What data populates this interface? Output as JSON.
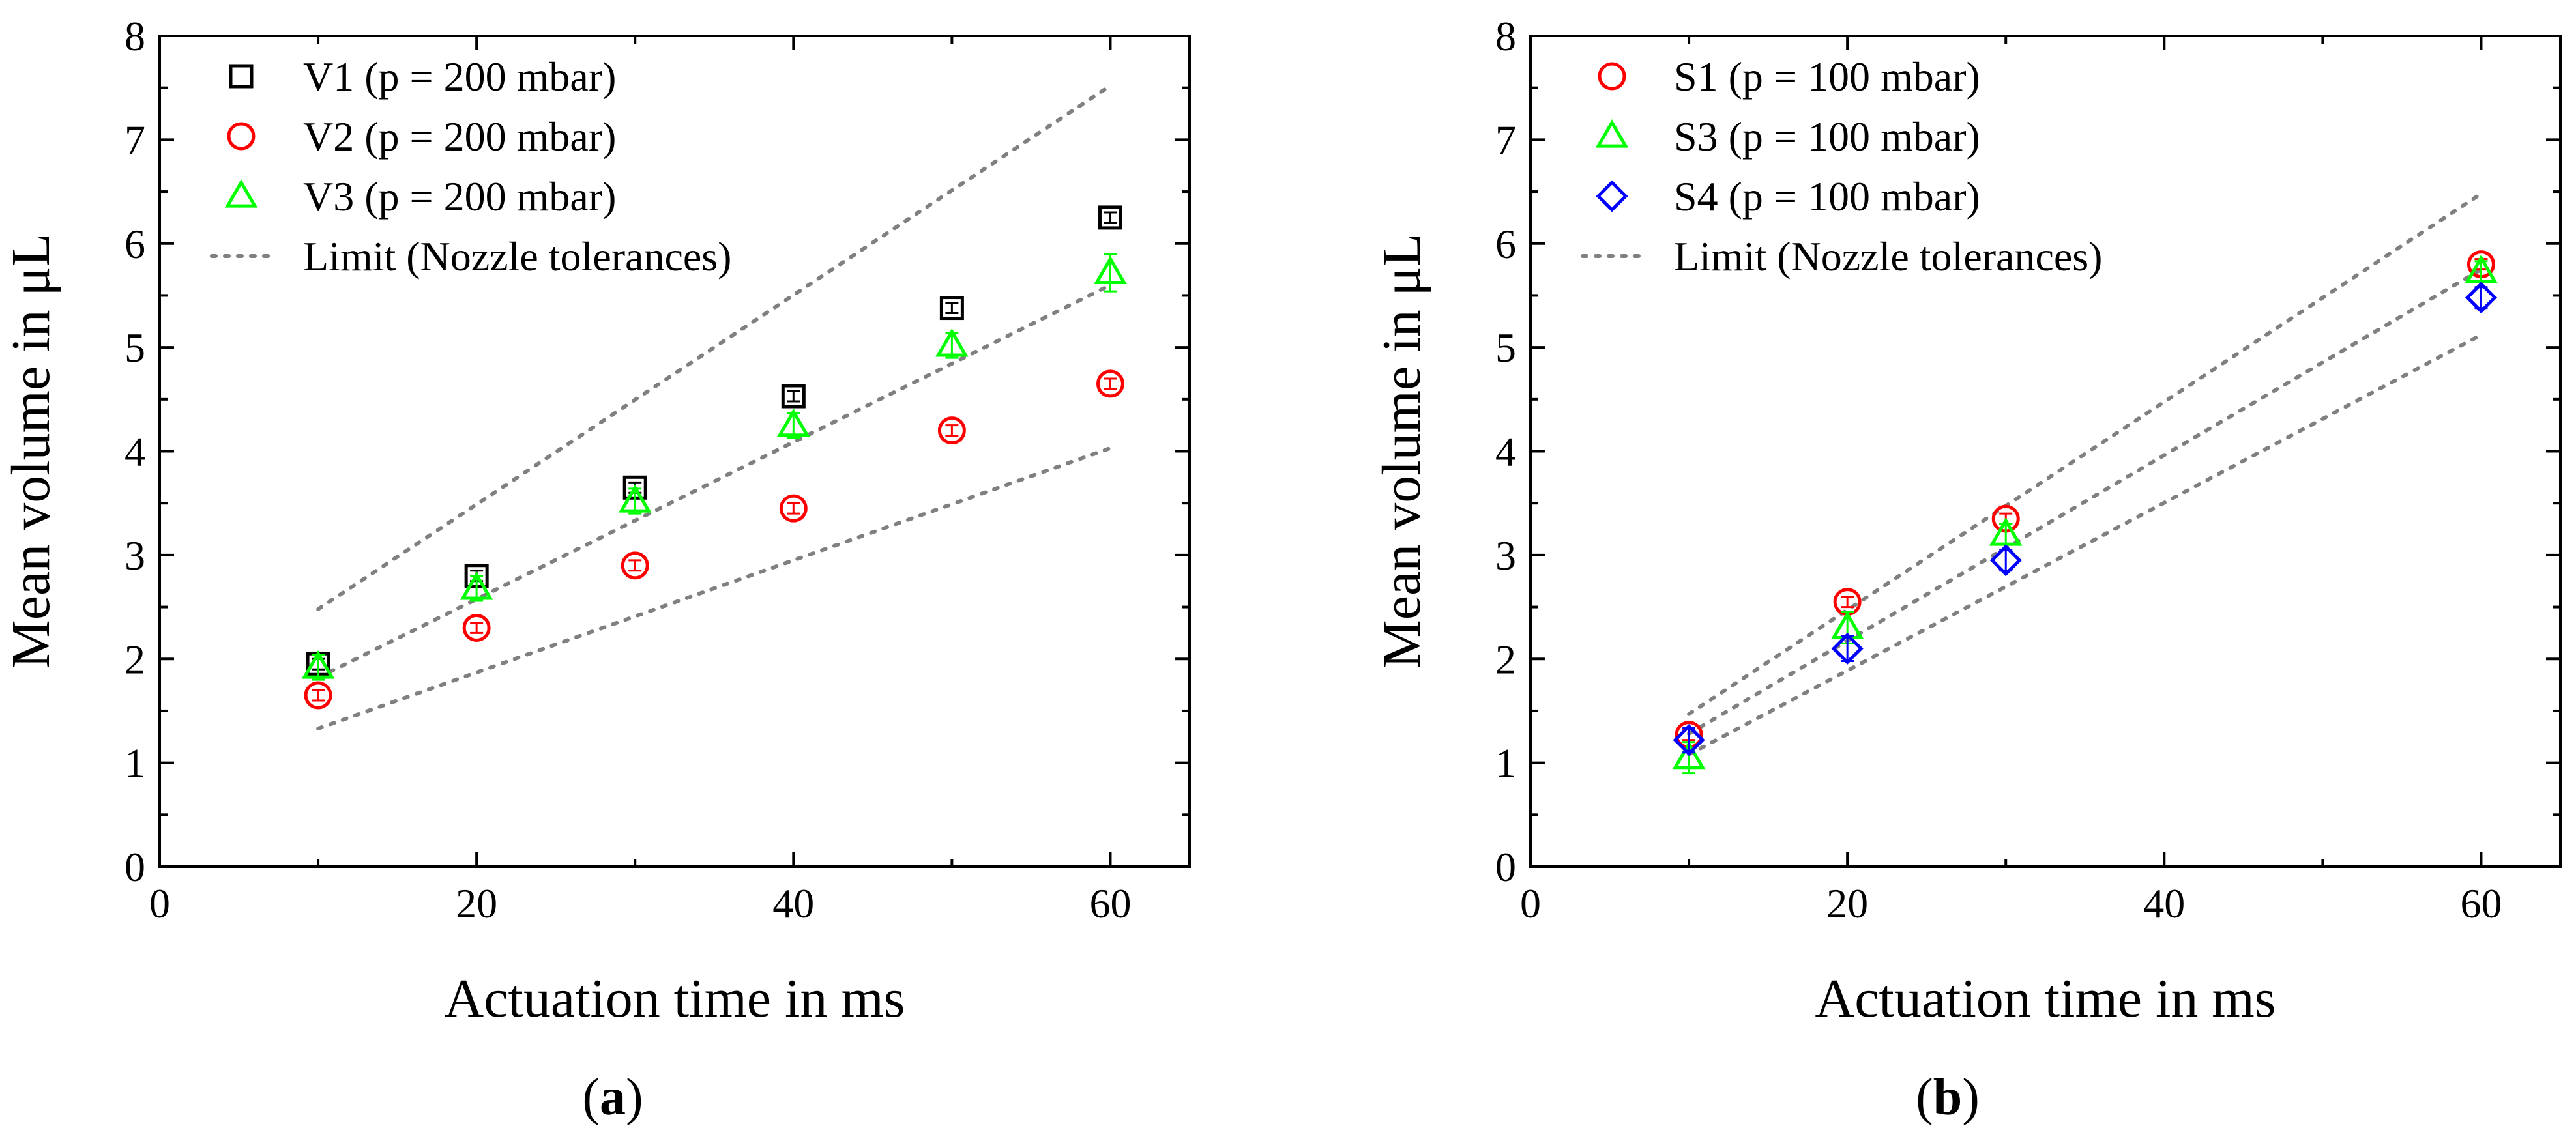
{
  "chart_data": [
    {
      "panel": "a",
      "caption_letter": "a",
      "type": "scatter",
      "xlabel": "Actuation time in ms",
      "ylabel": "Mean volume in μL",
      "xlim": [
        0,
        65
      ],
      "ylim": [
        0,
        8
      ],
      "xticks": [
        0,
        20,
        40,
        60
      ],
      "yticks": [
        0,
        1,
        2,
        3,
        4,
        5,
        6,
        7,
        8
      ],
      "legend_position": "top-left",
      "series": [
        {
          "name": "V1 (p = 200 mbar)",
          "marker": "square",
          "color": "#000000",
          "x": [
            10,
            20,
            30,
            40,
            50,
            60
          ],
          "y": [
            1.95,
            2.8,
            3.65,
            4.53,
            5.38,
            6.25
          ],
          "err": [
            0.05,
            0.05,
            0.05,
            0.05,
            0.05,
            0.05
          ]
        },
        {
          "name": "V2 (p = 200 mbar)",
          "marker": "circle",
          "color": "#ff0000",
          "x": [
            10,
            20,
            30,
            40,
            50,
            60
          ],
          "y": [
            1.65,
            2.3,
            2.9,
            3.45,
            4.2,
            4.65
          ],
          "err": [
            0.05,
            0.05,
            0.05,
            0.05,
            0.05,
            0.05
          ]
        },
        {
          "name": "V3 (p = 200 mbar)",
          "marker": "triangle",
          "color": "#00ff00",
          "x": [
            10,
            20,
            30,
            40,
            50,
            60
          ],
          "y": [
            1.92,
            2.68,
            3.52,
            4.25,
            5.02,
            5.72
          ],
          "err": [
            0.12,
            0.12,
            0.12,
            0.12,
            0.12,
            0.18
          ]
        }
      ],
      "limit_label": "Limit (Nozzle tolerances)",
      "limit_lines": [
        {
          "x": [
            10,
            60
          ],
          "y": [
            2.48,
            7.52
          ]
        },
        {
          "x": [
            10,
            60
          ],
          "y": [
            1.82,
            5.6
          ]
        },
        {
          "x": [
            10,
            60
          ],
          "y": [
            1.33,
            4.03
          ]
        }
      ]
    },
    {
      "panel": "b",
      "caption_letter": "b",
      "type": "scatter",
      "xlabel": "Actuation time in ms",
      "ylabel": "Mean volume in μL",
      "xlim": [
        0,
        65
      ],
      "ylim": [
        0,
        8
      ],
      "xticks": [
        0,
        20,
        40,
        60
      ],
      "yticks": [
        0,
        1,
        2,
        3,
        4,
        5,
        6,
        7,
        8
      ],
      "legend_position": "top-left",
      "series": [
        {
          "name": "S1 (p = 100 mbar)",
          "marker": "circle",
          "color": "#ff0000",
          "x": [
            10,
            20,
            30,
            60
          ],
          "y": [
            1.27,
            2.55,
            3.35,
            5.8
          ],
          "err": [
            0.05,
            0.05,
            0.05,
            0.05
          ]
        },
        {
          "name": "S3 (p = 100 mbar)",
          "marker": "triangle",
          "color": "#00ff00",
          "x": [
            10,
            20,
            30,
            60
          ],
          "y": [
            1.05,
            2.3,
            3.2,
            5.73
          ],
          "err": [
            0.15,
            0.15,
            0.1,
            0.1
          ]
        },
        {
          "name": "S4 (p = 100 mbar)",
          "marker": "diamond",
          "color": "#0000ff",
          "x": [
            10,
            20,
            30,
            60
          ],
          "y": [
            1.22,
            2.1,
            2.95,
            5.48
          ],
          "err": [
            0.12,
            0.12,
            0.1,
            0.1
          ]
        }
      ],
      "limit_label": "Limit (Nozzle tolerances)",
      "limit_lines": [
        {
          "x": [
            10,
            60
          ],
          "y": [
            1.47,
            6.48
          ]
        },
        {
          "x": [
            10,
            60
          ],
          "y": [
            1.28,
            5.75
          ]
        },
        {
          "x": [
            10,
            60
          ],
          "y": [
            1.08,
            5.12
          ]
        }
      ]
    }
  ]
}
